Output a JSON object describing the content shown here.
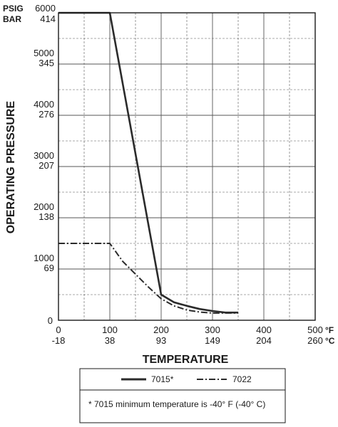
{
  "chart_data": {
    "type": "line",
    "xlabel": "TEMPERATURE",
    "ylabel": "OPERATING PRESSURE",
    "xlim": [
      0,
      500
    ],
    "ylim": [
      0,
      6000
    ],
    "y_units": [
      "PSIG",
      "BAR"
    ],
    "x_units": [
      "°F",
      "°C"
    ],
    "y_ticks": [
      {
        "psi": 0,
        "label": "0",
        "bar": ""
      },
      {
        "psi": 1000,
        "label": "1000",
        "bar": "69"
      },
      {
        "psi": 2000,
        "label": "2000",
        "bar": "138"
      },
      {
        "psi": 3000,
        "label": "3000",
        "bar": "207"
      },
      {
        "psi": 4000,
        "label": "4000",
        "bar": "276"
      },
      {
        "psi": 5000,
        "label": "5000",
        "bar": "345"
      },
      {
        "psi": 6000,
        "label": "6000",
        "bar": "414"
      }
    ],
    "x_ticks": [
      {
        "f": 0,
        "label": "0",
        "c": "-18"
      },
      {
        "f": 100,
        "label": "100",
        "c": "38"
      },
      {
        "f": 200,
        "label": "200",
        "c": "93"
      },
      {
        "f": 300,
        "label": "300",
        "c": "149"
      },
      {
        "f": 400,
        "label": "400",
        "c": "204"
      },
      {
        "f": 500,
        "label": "500",
        "c": "260"
      }
    ],
    "grid": true,
    "series": [
      {
        "name": "7015*",
        "style": "solid",
        "x": [
          0,
          100,
          200,
          225,
          250,
          275,
          300,
          325,
          350
        ],
        "y": [
          6000,
          6000,
          500,
          350,
          280,
          220,
          180,
          150,
          150
        ]
      },
      {
        "name": "7022",
        "style": "dash-dot",
        "x": [
          0,
          100,
          125,
          150,
          175,
          200,
          225,
          250,
          275,
          300,
          325,
          350
        ],
        "y": [
          1500,
          1500,
          1150,
          900,
          650,
          420,
          280,
          200,
          160,
          140,
          140,
          140
        ]
      }
    ],
    "legend_position": "bottom",
    "footnote": "* 7015 minimum temperature is -40° F (-40° C)"
  },
  "colors": {
    "line": "#2b2b2b",
    "grid": "#555555",
    "frame": "#1a1a1a"
  }
}
